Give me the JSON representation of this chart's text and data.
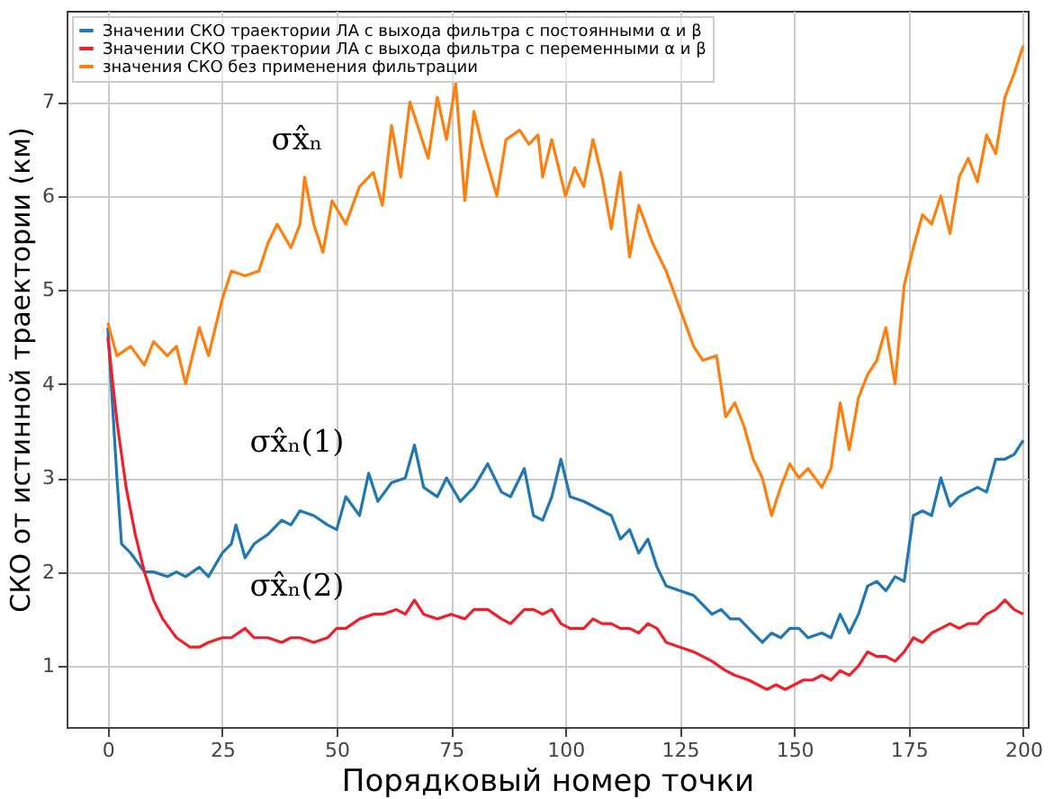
{
  "chart_data": {
    "type": "line",
    "xlabel": "Порядковый номер точки",
    "ylabel": "СКО от истинной траектории (км)",
    "xlim": [
      -9,
      201
    ],
    "xticks": [
      0,
      25,
      50,
      75,
      100,
      125,
      150,
      175,
      200
    ],
    "ylim": [
      0.35,
      7.97
    ],
    "yticks": [
      1,
      2,
      3,
      4,
      5,
      6,
      7
    ],
    "grid": true,
    "legend": "top left",
    "marker": "none",
    "line_style": "solid",
    "series": [
      {
        "name": "Значении СКО траектории ЛА с выхода фильтра с постоянными α и β",
        "color": "#1f77b4",
        "x": [
          0,
          2,
          3,
          5,
          8,
          10,
          13,
          15,
          17,
          20,
          22,
          25,
          27,
          28,
          30,
          32,
          35,
          38,
          40,
          42,
          45,
          48,
          50,
          52,
          55,
          57,
          59,
          62,
          65,
          67,
          69,
          72,
          74,
          77,
          80,
          83,
          86,
          88,
          91,
          93,
          95,
          97,
          99,
          101,
          104,
          106,
          108,
          110,
          112,
          114,
          116,
          118,
          120,
          122,
          125,
          128,
          130,
          132,
          134,
          136,
          138,
          141,
          143,
          145,
          147,
          149,
          151,
          153,
          156,
          158,
          160,
          162,
          164,
          166,
          168,
          170,
          172,
          174,
          176,
          178,
          180,
          182,
          184,
          186,
          188,
          190,
          192,
          194,
          196,
          198,
          200
        ],
        "values": [
          4.6,
          3.0,
          2.3,
          2.2,
          2.0,
          2.0,
          1.95,
          2.0,
          1.95,
          2.05,
          1.95,
          2.2,
          2.3,
          2.5,
          2.15,
          2.3,
          2.4,
          2.55,
          2.5,
          2.65,
          2.6,
          2.5,
          2.45,
          2.8,
          2.6,
          3.05,
          2.75,
          2.95,
          3.0,
          3.35,
          2.9,
          2.8,
          3.0,
          2.75,
          2.9,
          3.15,
          2.85,
          2.8,
          3.1,
          2.6,
          2.55,
          2.8,
          3.2,
          2.8,
          2.75,
          2.7,
          2.65,
          2.6,
          2.35,
          2.45,
          2.2,
          2.35,
          2.05,
          1.85,
          1.8,
          1.75,
          1.65,
          1.55,
          1.6,
          1.5,
          1.5,
          1.35,
          1.25,
          1.35,
          1.3,
          1.4,
          1.4,
          1.3,
          1.35,
          1.3,
          1.55,
          1.35,
          1.55,
          1.85,
          1.9,
          1.8,
          1.95,
          1.9,
          2.6,
          2.65,
          2.6,
          3.0,
          2.7,
          2.8,
          2.85,
          2.9,
          2.85,
          3.2,
          3.2,
          3.25,
          3.4
        ]
      },
      {
        "name": "Значении СКО траектории ЛА с выхода фильтра с переменными α и β",
        "color": "#f0202a",
        "x": [
          0,
          2,
          4,
          6,
          8,
          10,
          12,
          15,
          18,
          20,
          22,
          25,
          27,
          30,
          32,
          35,
          38,
          40,
          42,
          45,
          48,
          50,
          52,
          55,
          58,
          60,
          63,
          65,
          67,
          69,
          72,
          75,
          78,
          80,
          83,
          86,
          88,
          91,
          93,
          95,
          97,
          99,
          101,
          104,
          106,
          108,
          110,
          112,
          114,
          116,
          118,
          120,
          122,
          125,
          128,
          130,
          132,
          135,
          137,
          140,
          142,
          144,
          146,
          148,
          150,
          152,
          154,
          156,
          158,
          160,
          162,
          164,
          166,
          168,
          170,
          172,
          174,
          176,
          178,
          180,
          182,
          184,
          186,
          188,
          190,
          192,
          194,
          196,
          198,
          200
        ],
        "values": [
          4.5,
          3.6,
          2.9,
          2.4,
          2.0,
          1.7,
          1.5,
          1.3,
          1.2,
          1.2,
          1.25,
          1.3,
          1.3,
          1.4,
          1.3,
          1.3,
          1.25,
          1.3,
          1.3,
          1.25,
          1.3,
          1.4,
          1.4,
          1.5,
          1.55,
          1.55,
          1.6,
          1.55,
          1.7,
          1.55,
          1.5,
          1.55,
          1.5,
          1.6,
          1.6,
          1.5,
          1.45,
          1.6,
          1.6,
          1.55,
          1.6,
          1.45,
          1.4,
          1.4,
          1.5,
          1.45,
          1.45,
          1.4,
          1.4,
          1.35,
          1.45,
          1.4,
          1.25,
          1.2,
          1.15,
          1.1,
          1.05,
          0.95,
          0.9,
          0.85,
          0.8,
          0.75,
          0.8,
          0.75,
          0.8,
          0.85,
          0.85,
          0.9,
          0.85,
          0.95,
          0.9,
          1.0,
          1.15,
          1.1,
          1.1,
          1.05,
          1.15,
          1.3,
          1.25,
          1.35,
          1.4,
          1.45,
          1.4,
          1.45,
          1.45,
          1.55,
          1.6,
          1.7,
          1.6,
          1.55
        ]
      },
      {
        "name": "значения СКО без применения фильтрации",
        "color": "#ff7f0e",
        "x": [
          0,
          2,
          5,
          8,
          10,
          13,
          15,
          17,
          20,
          22,
          25,
          27,
          30,
          33,
          35,
          37,
          40,
          42,
          43,
          45,
          47,
          49,
          52,
          55,
          58,
          60,
          62,
          64,
          66,
          68,
          70,
          72,
          74,
          76,
          78,
          80,
          82,
          85,
          87,
          90,
          92,
          94,
          95,
          97,
          100,
          102,
          104,
          106,
          108,
          110,
          112,
          114,
          116,
          119,
          122,
          125,
          128,
          130,
          133,
          135,
          137,
          139,
          141,
          143,
          145,
          147,
          149,
          151,
          153,
          156,
          158,
          160,
          162,
          164,
          166,
          168,
          170,
          172,
          174,
          176,
          178,
          180,
          182,
          184,
          186,
          188,
          190,
          192,
          194,
          196,
          198,
          200
        ],
        "values": [
          4.65,
          4.3,
          4.4,
          4.2,
          4.45,
          4.3,
          4.4,
          4.0,
          4.6,
          4.3,
          4.9,
          5.2,
          5.15,
          5.2,
          5.5,
          5.7,
          5.45,
          5.7,
          6.2,
          5.7,
          5.4,
          5.95,
          5.7,
          6.1,
          6.25,
          5.9,
          6.75,
          6.2,
          7.0,
          6.7,
          6.4,
          7.05,
          6.6,
          7.2,
          5.95,
          6.9,
          6.5,
          6.0,
          6.6,
          6.7,
          6.55,
          6.65,
          6.2,
          6.6,
          6.0,
          6.3,
          6.1,
          6.6,
          6.2,
          5.65,
          6.25,
          5.35,
          5.9,
          5.5,
          5.2,
          4.8,
          4.4,
          4.25,
          4.3,
          3.65,
          3.8,
          3.55,
          3.2,
          3.0,
          2.6,
          2.9,
          3.15,
          3.0,
          3.1,
          2.9,
          3.1,
          3.8,
          3.3,
          3.85,
          4.1,
          4.25,
          4.6,
          4.0,
          5.05,
          5.45,
          5.8,
          5.7,
          6.0,
          5.6,
          6.2,
          6.4,
          6.15,
          6.65,
          6.45,
          7.05,
          7.3,
          7.6
        ]
      }
    ],
    "annotations": [
      "σx̂ₙ",
      "σx̂ₙ(1)",
      "σx̂ₙ(2)"
    ]
  }
}
